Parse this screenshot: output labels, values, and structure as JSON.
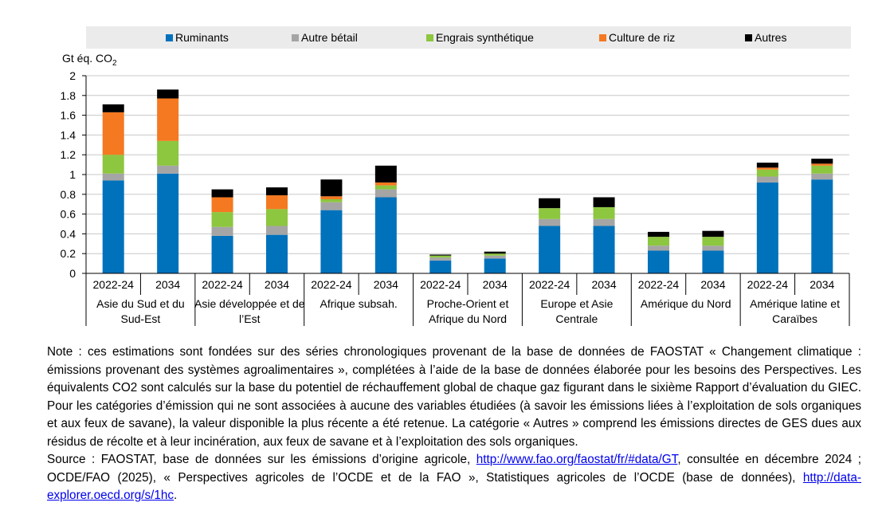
{
  "chart_data": {
    "type": "bar",
    "stacked": true,
    "ylabel": "Gt éq. CO",
    "ylabel_sub": "2",
    "ylim": [
      0,
      2
    ],
    "yticks": [
      "0",
      "0.2",
      "0.4",
      "0.6",
      "0.8",
      "1",
      "1.2",
      "1.4",
      "1.6",
      "1.8",
      "2"
    ],
    "legend_position": "top",
    "groups": [
      {
        "label": "Asie du Sud et du Sud-Est",
        "label_lines": [
          "Asie du Sud et du",
          "Sud-Est"
        ]
      },
      {
        "label": "Asie développée et de l’Est",
        "label_lines": [
          "Asie développée et de",
          "l’Est"
        ]
      },
      {
        "label": "Afrique subsah.",
        "label_lines": [
          "Afrique subsah."
        ]
      },
      {
        "label": "Proche-Orient et Afrique du Nord",
        "label_lines": [
          "Proche-Orient et",
          "Afrique du Nord"
        ]
      },
      {
        "label": "Europe et Asie Centrale",
        "label_lines": [
          "Europe et Asie",
          "Centrale"
        ]
      },
      {
        "label": "Amérique du Nord",
        "label_lines": [
          "Amérique du Nord"
        ]
      },
      {
        "label": "Amérique latine et Caraïbes",
        "label_lines": [
          "Amérique latine et",
          "Caraïbes"
        ]
      }
    ],
    "categories": [
      "2022-24",
      "2034",
      "2022-24",
      "2034",
      "2022-24",
      "2034",
      "2022-24",
      "2034",
      "2022-24",
      "2034",
      "2022-24",
      "2034",
      "2022-24",
      "2034"
    ],
    "series": [
      {
        "name": "Ruminants",
        "color": "#0072bc",
        "values": [
          0.94,
          1.01,
          0.38,
          0.39,
          0.64,
          0.77,
          0.13,
          0.15,
          0.48,
          0.48,
          0.23,
          0.23,
          0.92,
          0.95
        ]
      },
      {
        "name": "Autre bétail",
        "color": "#a5a5a5",
        "values": [
          0.07,
          0.08,
          0.09,
          0.09,
          0.08,
          0.08,
          0.03,
          0.03,
          0.07,
          0.07,
          0.05,
          0.05,
          0.06,
          0.06
        ]
      },
      {
        "name": "Engrais synthétique",
        "color": "#8dc63f",
        "values": [
          0.19,
          0.25,
          0.15,
          0.17,
          0.03,
          0.04,
          0.02,
          0.02,
          0.11,
          0.12,
          0.09,
          0.09,
          0.07,
          0.08
        ]
      },
      {
        "name": "Culture de riz",
        "color": "#f47920",
        "values": [
          0.43,
          0.43,
          0.15,
          0.14,
          0.03,
          0.03,
          0.0,
          0.0,
          0.0,
          0.0,
          0.0,
          0.0,
          0.02,
          0.02
        ]
      },
      {
        "name": "Autres",
        "color": "#000000",
        "values": [
          0.08,
          0.09,
          0.08,
          0.08,
          0.17,
          0.17,
          0.01,
          0.02,
          0.1,
          0.1,
          0.05,
          0.06,
          0.05,
          0.05
        ]
      }
    ]
  },
  "note": {
    "note_text": "Note : ces estimations sont fondées sur des séries chronologiques provenant de la base de données de FAOSTAT « Changement climatique : émissions provenant des systèmes agroalimentaires », complétées à l’aide de la base de données élaborée pour les besoins des Perspectives. Les équivalents CO2 sont calculés sur la base du potentiel de réchauffement global de chaque gaz figurant dans le sixième Rapport d’évaluation du GIEC. Pour les catégories d’émission qui ne sont associées à aucune des variables étudiées (à savoir les émissions liées à l’exploitation de sols organiques et aux feux de savane), la valeur disponible la plus récente a été retenue. La catégorie « Autres » comprend les émissions directes de GES dues aux résidus de récolte et à leur incinération, aux feux de savane et à l’exploitation des sols organiques.",
    "source_prefix": "Source : FAOSTAT, base de données sur les émissions d’origine agricole, ",
    "source_link1": "http://www.fao.org/faostat/fr/#data/GT",
    "source_middle": ", consultée en décembre 2024 ; OCDE/FAO (2025), « Perspectives agricoles de l’OCDE et de la FAO », Statistiques agricoles de l’OCDE (base de données), ",
    "source_link2": "http://data-explorer.oecd.org/s/1hc",
    "source_suffix": "."
  }
}
